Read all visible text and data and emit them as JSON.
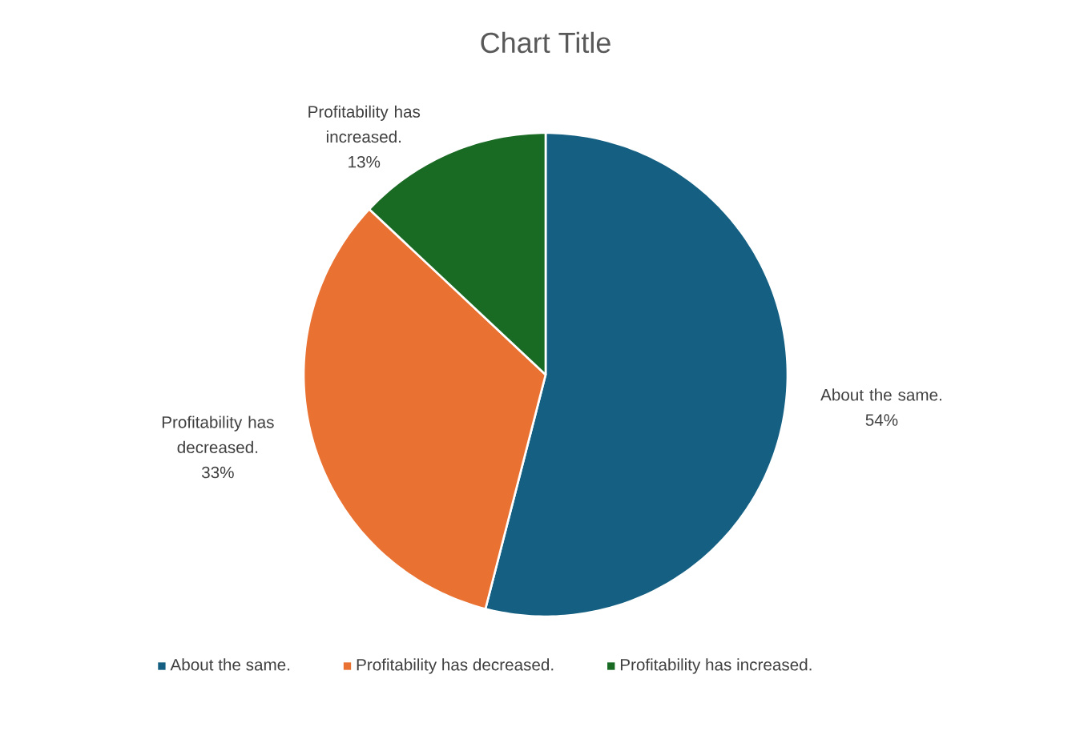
{
  "chart_data": {
    "type": "pie",
    "title": "Chart Title",
    "categories": [
      "About the same.",
      "Profitability has decreased.",
      "Profitability has increased."
    ],
    "values": [
      54,
      33,
      13
    ],
    "value_labels": [
      "54%",
      "33%",
      "13%"
    ],
    "colors": [
      "#156082",
      "#e97132",
      "#196b24"
    ],
    "legend": "bottom"
  }
}
